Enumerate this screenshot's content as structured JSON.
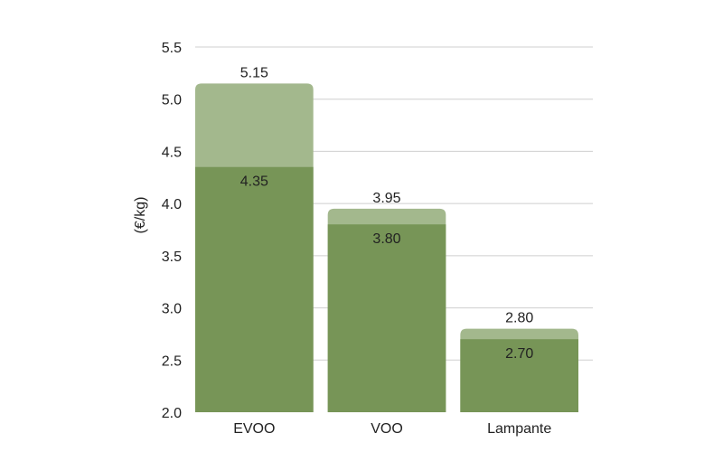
{
  "chart_data": {
    "type": "bar",
    "categories": [
      "EVOO",
      "VOO",
      "Lampante"
    ],
    "series": [
      {
        "values": [
          4.35,
          3.8,
          2.7
        ],
        "color": "#779557"
      },
      {
        "values": [
          5.15,
          3.95,
          2.8
        ],
        "color": "#a3b88d"
      }
    ],
    "ylabel": "(€/kg)",
    "ylim": [
      2.0,
      5.5
    ],
    "yticks": [
      "2.0",
      "2.5",
      "3.0",
      "3.5",
      "4.0",
      "4.5",
      "5.0",
      "5.5"
    ],
    "grid": true,
    "inner_labels": [
      "4.35",
      "3.80",
      "2.70"
    ],
    "top_labels": [
      "5.15",
      "3.95",
      "2.80"
    ]
  }
}
